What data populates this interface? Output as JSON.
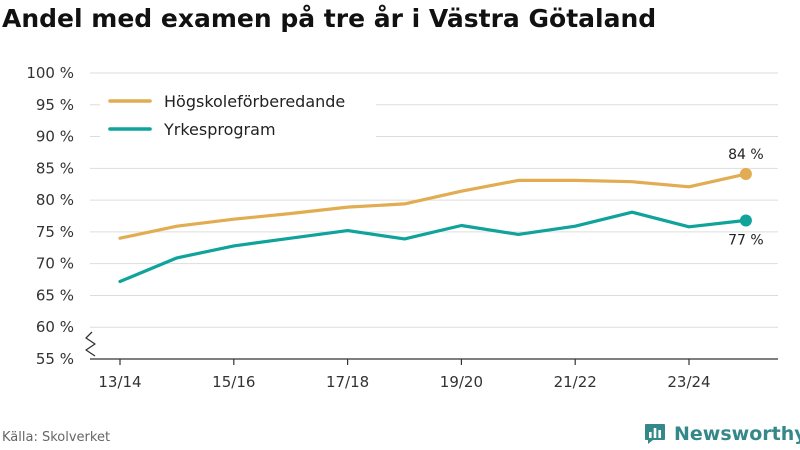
{
  "title": "Andel med examen på tre år i Västra Götaland",
  "source": "Källa: Skolverket",
  "brand": "Newsworthy",
  "colors": {
    "hogskole": "#e1ac52",
    "yrkes": "#0fa39b",
    "grid": "#dddddd",
    "axis": "#333333",
    "brand": "#35888a"
  },
  "chart_data": {
    "type": "line",
    "title": "Andel med examen på tre år i Västra Götaland",
    "xlabel": "",
    "ylabel": "",
    "x": [
      "13/14",
      "14/15",
      "15/16",
      "16/17",
      "17/18",
      "18/19",
      "19/20",
      "20/21",
      "21/22",
      "22/23",
      "23/24",
      "24/25"
    ],
    "x_tick_labels": [
      "13/14",
      "15/16",
      "17/18",
      "19/20",
      "21/22",
      "23/24"
    ],
    "ylim": [
      55,
      100
    ],
    "y_ticks": [
      55,
      60,
      65,
      70,
      75,
      80,
      85,
      90,
      95,
      100
    ],
    "y_tick_labels": [
      "55 %",
      "60 %",
      "65 %",
      "70 %",
      "75 %",
      "80 %",
      "85 %",
      "90 %",
      "95 %",
      "100 %"
    ],
    "y_axis_break": true,
    "grid": true,
    "legend_position": "top-left",
    "series": [
      {
        "name": "Högskoleförberedande",
        "color_key": "hogskole",
        "values": [
          74.0,
          75.9,
          77.0,
          77.9,
          78.9,
          79.4,
          81.4,
          83.1,
          83.1,
          82.9,
          82.1,
          84.1
        ],
        "end_label": "84 %",
        "end_label_position": "above"
      },
      {
        "name": "Yrkesprogram",
        "color_key": "yrkes",
        "values": [
          67.2,
          70.9,
          72.8,
          74.0,
          75.2,
          73.9,
          76.0,
          74.6,
          75.9,
          78.1,
          75.8,
          76.8
        ],
        "end_label": "77 %",
        "end_label_position": "below"
      }
    ]
  }
}
